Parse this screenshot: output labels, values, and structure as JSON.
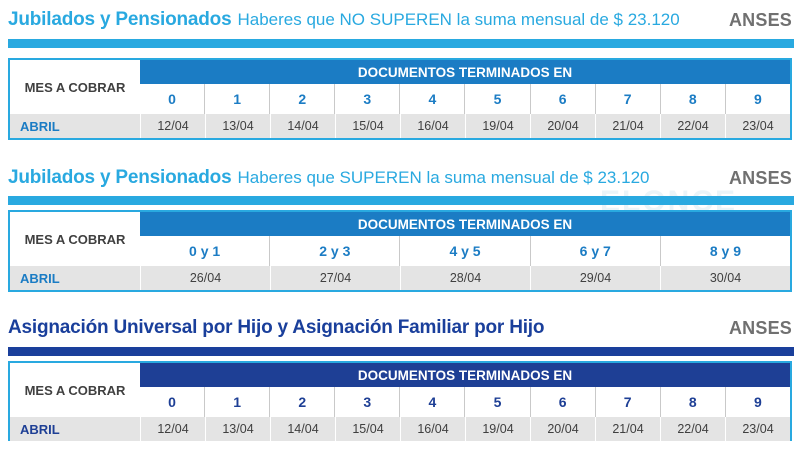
{
  "colors": {
    "light_blue": "#29a9e0",
    "dark_blue": "#1a3f9b",
    "table_head_light": "#1b7cc4",
    "table_head_dark": "#1e3f95",
    "grey_row": "#e4e4e4"
  },
  "sections": [
    {
      "title_bold": "Jubilados y Pensionados",
      "title_thin": "Haberes que NO SUPEREN la suma mensual de $ 23.120",
      "brand": "ANSES",
      "mes_label": "MES A COBRAR",
      "doc_header": "DOCUMENTOS TERMINADOS EN",
      "digits": [
        "0",
        "1",
        "2",
        "3",
        "4",
        "5",
        "6",
        "7",
        "8",
        "9"
      ],
      "month": "ABRIL",
      "dates": [
        "12/04",
        "13/04",
        "14/04",
        "15/04",
        "16/04",
        "19/04",
        "20/04",
        "21/04",
        "22/04",
        "23/04"
      ]
    },
    {
      "title_bold": "Jubilados y Pensionados",
      "title_thin": "Haberes que SUPEREN la suma mensual de $ 23.120",
      "brand": "ANSES",
      "mes_label": "MES A COBRAR",
      "doc_header": "DOCUMENTOS TERMINADOS EN",
      "digits": [
        "0 y 1",
        "2 y 3",
        "4 y 5",
        "6 y 7",
        "8 y 9"
      ],
      "month": "ABRIL",
      "dates": [
        "26/04",
        "27/04",
        "28/04",
        "29/04",
        "30/04"
      ]
    },
    {
      "title_bold": "Asignación Universal por Hijo y Asignación Familiar por Hijo",
      "title_thin": "",
      "brand": "ANSES",
      "mes_label": "MES A COBRAR",
      "doc_header": "DOCUMENTOS TERMINADOS EN",
      "digits": [
        "0",
        "1",
        "2",
        "3",
        "4",
        "5",
        "6",
        "7",
        "8",
        "9"
      ],
      "month": "ABRIL",
      "dates": [
        "12/04",
        "13/04",
        "14/04",
        "15/04",
        "16/04",
        "19/04",
        "20/04",
        "21/04",
        "22/04",
        "23/04"
      ]
    }
  ],
  "watermark": "ELONCE"
}
